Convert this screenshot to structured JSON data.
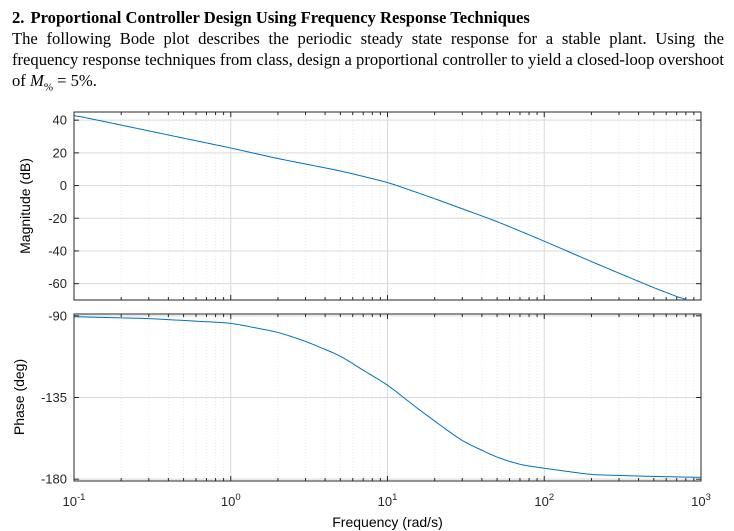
{
  "problem": {
    "number": "2.",
    "title": "Proportional Controller Design Using Frequency Response Techniques",
    "text_before_symbol": "The following Bode plot describes the periodic steady state response for a stable plant. Using the frequency response techniques from class, design a proportional controller to yield a closed-loop overshoot of ",
    "symbol": "M",
    "symbol_subscript": "%",
    "text_after_symbol": " = 5%."
  },
  "chart_data": {
    "type": "line",
    "xlabel": "Frequency  (rad/s)",
    "xscale": "log",
    "xlim": [
      0.1,
      1000
    ],
    "xtick_base": "10",
    "xtick_exponents": [
      "-1",
      "0",
      "1",
      "2",
      "3"
    ],
    "grid": true,
    "line_color": "#0072bd",
    "subplots": [
      {
        "name": "magnitude",
        "ylabel": "Magnitude (dB)",
        "ylim": [
          -70,
          45
        ],
        "yticks": [
          40,
          20,
          0,
          -20,
          -40,
          -60
        ],
        "ytick_labels": [
          "40",
          "20",
          "0",
          "-20",
          "-40",
          "-60"
        ],
        "x": [
          0.1,
          0.2,
          0.5,
          1,
          2,
          5,
          10,
          20,
          50,
          100,
          200,
          500,
          800
        ],
        "y": [
          43.0,
          37.0,
          29.0,
          23.0,
          16.5,
          9.0,
          2.0,
          -8.0,
          -22.0,
          -34.0,
          -46.5,
          -62.5,
          -70.0
        ]
      },
      {
        "name": "phase",
        "ylabel": "Phase (deg)",
        "ylim": [
          -181,
          -89
        ],
        "yticks": [
          -90,
          -135,
          -180
        ],
        "ytick_labels": [
          "-90",
          "-135",
          "-180"
        ],
        "x": [
          0.1,
          0.3,
          1,
          2,
          3,
          5,
          7,
          10,
          15,
          20,
          30,
          50,
          70,
          100,
          200,
          500,
          1000
        ],
        "y": [
          -90.5,
          -91.5,
          -94.0,
          -99.0,
          -104.0,
          -112.0,
          -120.0,
          -128.0,
          -140.0,
          -148.0,
          -159.0,
          -168.0,
          -172.0,
          -174.0,
          -177.5,
          -178.5,
          -179.0
        ]
      }
    ]
  }
}
